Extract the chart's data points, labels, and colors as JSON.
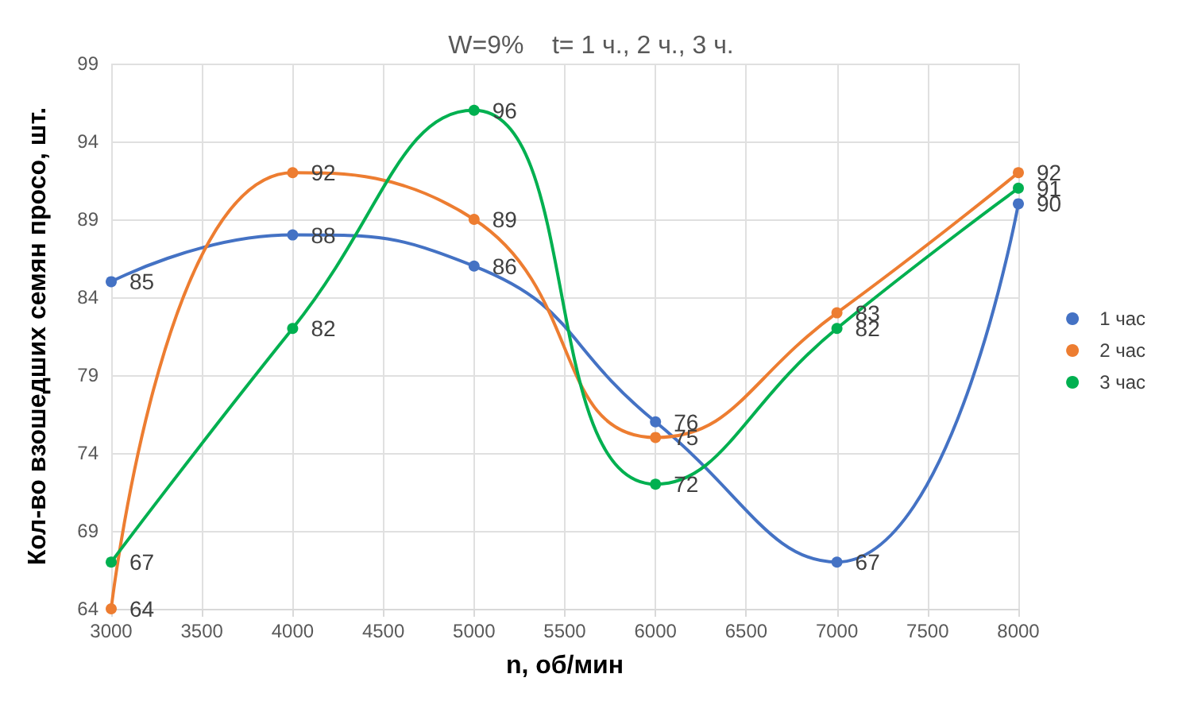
{
  "chart_data": {
    "type": "line",
    "title": "W=9%    t= 1 ч., 2 ч., 3 ч.",
    "xlabel": "n, об/мин",
    "ylabel": "Кол-во взошедших семян просо, шт.",
    "x": [
      3000,
      4000,
      5000,
      6000,
      7000,
      8000
    ],
    "series": [
      {
        "name": "1 час",
        "color": "#4472c4",
        "values": [
          85,
          88,
          86,
          76,
          67,
          90
        ]
      },
      {
        "name": "2 час",
        "color": "#ed7d31",
        "values": [
          64,
          92,
          89,
          75,
          83,
          92
        ]
      },
      {
        "name": "3 час",
        "color": "#00b050",
        "values": [
          67,
          82,
          96,
          72,
          82,
          91
        ]
      }
    ],
    "xlim": [
      3000,
      8000
    ],
    "xticks": [
      3000,
      3500,
      4000,
      4500,
      5000,
      5500,
      6000,
      6500,
      7000,
      7500,
      8000
    ],
    "ylim": [
      64,
      99
    ],
    "yticks": [
      64,
      69,
      74,
      79,
      84,
      89,
      94,
      99
    ],
    "grid": true,
    "legend": "right",
    "marker": "circle",
    "line_style": "solid",
    "data_labels": true
  }
}
